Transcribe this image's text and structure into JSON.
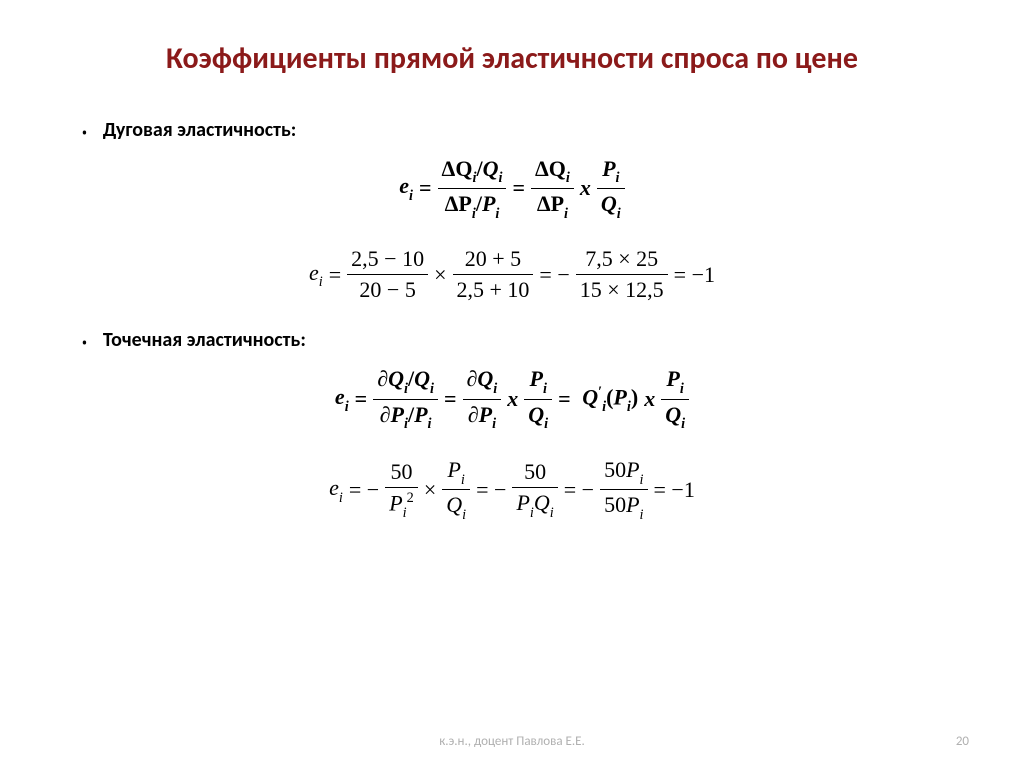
{
  "title": "Коэффициенты прямой эластичности спроса по цене",
  "bullets": {
    "arc": "Дуговая эластичность:",
    "point": "Точечная эластичность:"
  },
  "formulas": {
    "arc_def": {
      "lhs": "e",
      "lhs_sub": "i",
      "num1": "ΔQ",
      "num1_sub": "i",
      "num1b": "Q",
      "num1b_sub": "i",
      "den1": "ΔP",
      "den1_sub": "i",
      "den1b": "P",
      "den1b_sub": "i",
      "mid_num": "ΔQ",
      "mid_num_sub": "i",
      "mid_den": "ΔP",
      "mid_den_sub": "i",
      "x": "x",
      "r_num": "P",
      "r_num_sub": "i",
      "r_den": "Q",
      "r_den_sub": "i"
    },
    "arc_calc": {
      "lhs": "e",
      "lhs_sub": "i",
      "f1_num": "2,5 − 10",
      "f1_den": "20 − 5",
      "times": "×",
      "f2_num": "20 + 5",
      "f2_den": "2,5 + 10",
      "eq_neg": "= −",
      "f3_num": "7,5 × 25",
      "f3_den": "15 × 12,5",
      "result": "= −1"
    },
    "point_def": {
      "lhs": "e",
      "lhs_sub": "i",
      "d": "∂",
      "Q": "Q",
      "Qi": "i",
      "P": "P",
      "Pi": "i",
      "x": "x",
      "prime": "′",
      "lparen": "(",
      "rparen": ")"
    },
    "point_calc": {
      "lhs": "e",
      "lhs_sub": "i",
      "neg": "= −",
      "f1_num": "50",
      "f1_den_base": "P",
      "f1_den_sub": "i",
      "f1_den_sup": "2",
      "times": "×",
      "f2_num_base": "P",
      "f2_num_sub": "i",
      "f2_den_base": "Q",
      "f2_den_sub": "i",
      "f3_num": "50",
      "f3_den": "PᵢQᵢ",
      "f4_num": "50Pᵢ",
      "f4_den": "50Pᵢ",
      "result": "= −1"
    }
  },
  "footer": "к.э.н., доцент Павлова Е.Е.",
  "page": "20",
  "colors": {
    "title": "#8b1a1a",
    "text": "#000000",
    "footer": "#b0b0b0",
    "background": "#ffffff"
  },
  "fonts": {
    "title_size": 30,
    "body_size": 20,
    "formula_size": 22,
    "footer_size": 13
  }
}
